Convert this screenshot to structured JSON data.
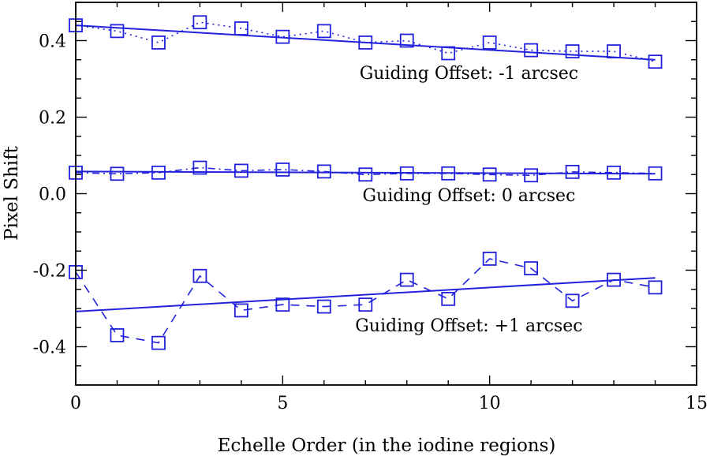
{
  "chart_data": {
    "type": "line",
    "xlabel": "Echelle Order (in the iodine regions)",
    "ylabel": "Pixel Shift",
    "xlim": [
      0,
      15
    ],
    "ylim": [
      -0.5,
      0.5
    ],
    "x_ticks": [
      0,
      5,
      10,
      15
    ],
    "x_tick_labels": [
      "0",
      "5",
      "10",
      "15"
    ],
    "y_ticks": [
      -0.4,
      -0.2,
      0.0,
      0.2,
      0.4
    ],
    "y_tick_labels": [
      "-0.4",
      "-0.2",
      "0.0",
      "0.2",
      "0.4"
    ],
    "x": [
      0,
      1,
      2,
      3,
      4,
      5,
      6,
      7,
      8,
      9,
      10,
      11,
      12,
      13,
      14
    ],
    "grid": false,
    "line_color": "#2222dd",
    "series": [
      {
        "label": "Guiding Offset: -1 arcsec",
        "line_style": "dotted",
        "marker": "square",
        "values": [
          0.44,
          0.425,
          0.395,
          0.448,
          0.432,
          0.41,
          0.425,
          0.395,
          0.4,
          0.367,
          0.395,
          0.375,
          0.372,
          0.372,
          0.345
        ],
        "fit": [
          0.44,
          0.35
        ]
      },
      {
        "label": "Guiding Offset: 0 arcsec",
        "line_style": "dashdot",
        "marker": "square",
        "values": [
          0.055,
          0.052,
          0.055,
          0.068,
          0.06,
          0.063,
          0.058,
          0.05,
          0.053,
          0.053,
          0.05,
          0.048,
          0.057,
          0.055,
          0.053
        ],
        "fit": [
          0.058,
          0.052
        ]
      },
      {
        "label": "Guiding Offset: +1 arcsec",
        "line_style": "dashed",
        "marker": "square",
        "values": [
          -0.205,
          -0.37,
          -0.39,
          -0.215,
          -0.305,
          -0.29,
          -0.295,
          -0.29,
          -0.225,
          -0.275,
          -0.17,
          -0.195,
          -0.28,
          -0.225,
          -0.245
        ],
        "fit": [
          -0.308,
          -0.22
        ]
      }
    ],
    "annotations": [
      {
        "text": "Guiding Offset: -1 arcsec",
        "x": 9.5,
        "y": 0.3
      },
      {
        "text": "Guiding Offset: 0 arcsec",
        "x": 9.5,
        "y": -0.02
      },
      {
        "text": "Guiding Offset: +1 arcsec",
        "x": 9.5,
        "y": -0.36
      }
    ]
  }
}
